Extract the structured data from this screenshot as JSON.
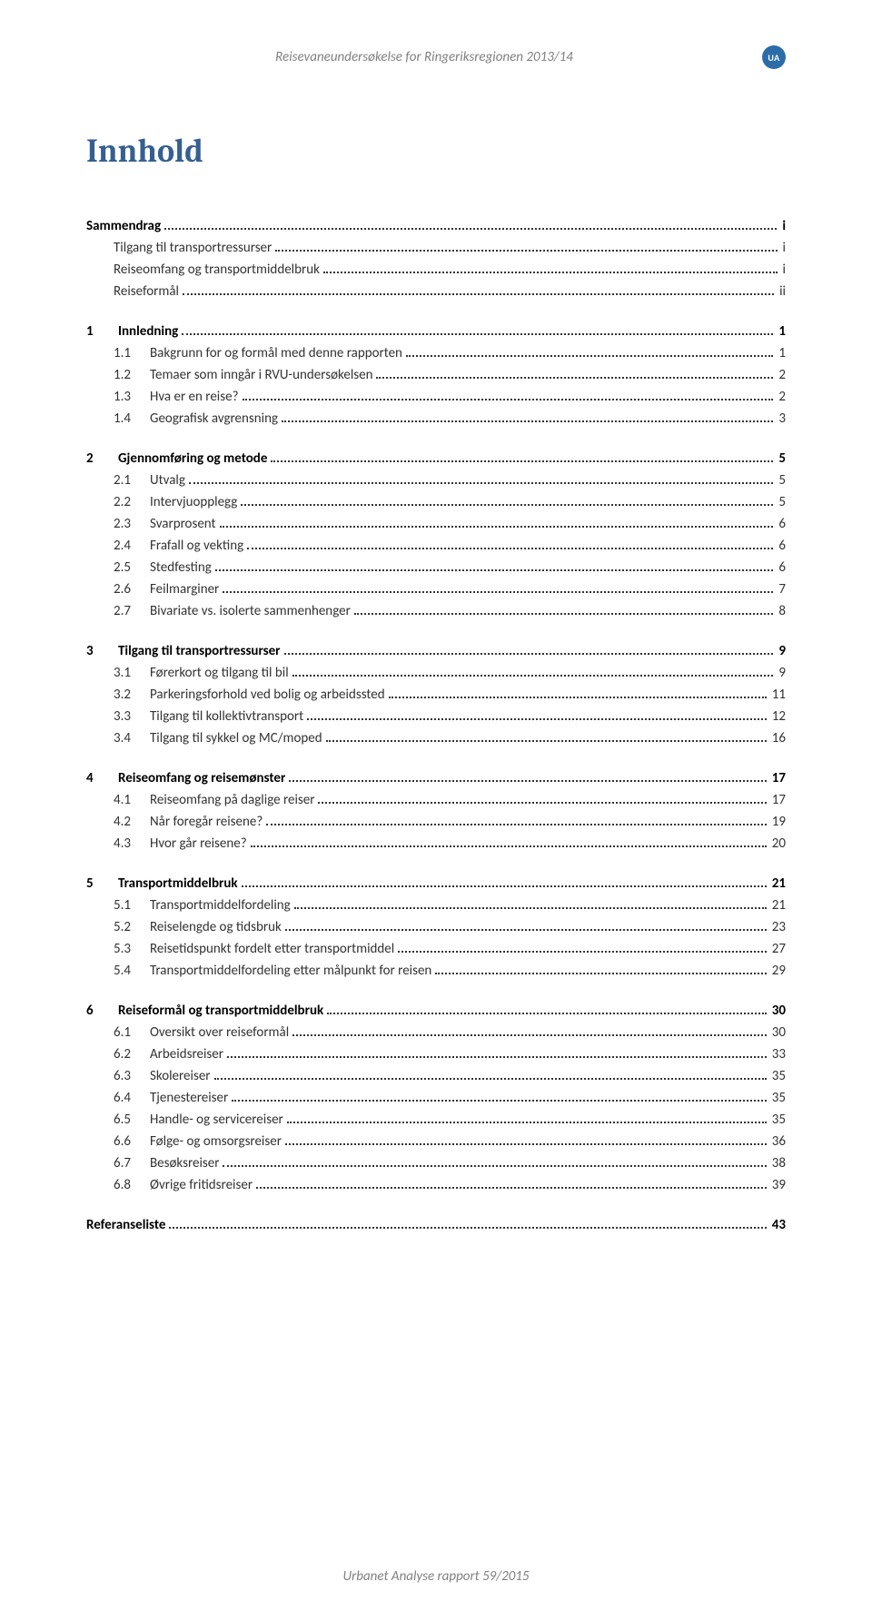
{
  "header": {
    "doc_title": "Reisevaneundersøkelse for Ringeriksregionen 2013/14",
    "badge": "UA"
  },
  "page_heading": "Innhold",
  "footer": "Urbanet Analyse rapport 59/2015",
  "colors": {
    "heading": "#365f91",
    "muted": "#808080",
    "text": "#333333",
    "badge_bg": "#2c6ca8",
    "badge_fg": "#ffffff",
    "background": "#ffffff"
  },
  "toc": [
    {
      "level": 0,
      "section": true,
      "label": "Sammendrag",
      "page": "i"
    },
    {
      "level": 1,
      "label": "Tilgang til transportressurser",
      "page": "i"
    },
    {
      "level": 1,
      "label": "Reiseomfang og transportmiddelbruk",
      "page": "i"
    },
    {
      "level": 1,
      "label": "Reiseformål",
      "page": "ii"
    },
    {
      "level": 0,
      "section": true,
      "num": "1",
      "label": "Innledning",
      "page": "1"
    },
    {
      "level": 1,
      "num": "1.1",
      "label": "Bakgrunn for og formål med denne rapporten",
      "page": "1"
    },
    {
      "level": 1,
      "num": "1.2",
      "label": "Temaer som inngår i RVU-undersøkelsen",
      "page": "2"
    },
    {
      "level": 1,
      "num": "1.3",
      "label": "Hva er en reise?",
      "page": "2"
    },
    {
      "level": 1,
      "num": "1.4",
      "label": "Geografisk avgrensning",
      "page": "3"
    },
    {
      "level": 0,
      "section": true,
      "num": "2",
      "label": "Gjennomføring og metode",
      "page": "5"
    },
    {
      "level": 1,
      "num": "2.1",
      "label": "Utvalg",
      "page": "5"
    },
    {
      "level": 1,
      "num": "2.2",
      "label": "Intervjuopplegg",
      "page": "5"
    },
    {
      "level": 1,
      "num": "2.3",
      "label": "Svarprosent",
      "page": "6"
    },
    {
      "level": 1,
      "num": "2.4",
      "label": "Frafall og vekting",
      "page": "6"
    },
    {
      "level": 1,
      "num": "2.5",
      "label": "Stedfesting",
      "page": "6"
    },
    {
      "level": 1,
      "num": "2.6",
      "label": "Feilmarginer",
      "page": "7"
    },
    {
      "level": 1,
      "num": "2.7",
      "label": "Bivariate vs. isolerte sammenhenger",
      "page": "8"
    },
    {
      "level": 0,
      "section": true,
      "num": "3",
      "label": "Tilgang til transportressurser",
      "page": "9"
    },
    {
      "level": 1,
      "num": "3.1",
      "label": "Førerkort og tilgang til bil",
      "page": "9"
    },
    {
      "level": 1,
      "num": "3.2",
      "label": "Parkeringsforhold ved bolig og arbeidssted",
      "page": "11"
    },
    {
      "level": 1,
      "num": "3.3",
      "label": "Tilgang til kollektivtransport",
      "page": "12"
    },
    {
      "level": 1,
      "num": "3.4",
      "label": "Tilgang til sykkel og MC/moped",
      "page": "16"
    },
    {
      "level": 0,
      "section": true,
      "num": "4",
      "label": "Reiseomfang og reisemønster",
      "page": "17"
    },
    {
      "level": 1,
      "num": "4.1",
      "label": "Reiseomfang på daglige reiser",
      "page": "17"
    },
    {
      "level": 1,
      "num": "4.2",
      "label": "Når foregår reisene?",
      "page": "19"
    },
    {
      "level": 1,
      "num": "4.3",
      "label": "Hvor går reisene?",
      "page": "20"
    },
    {
      "level": 0,
      "section": true,
      "num": "5",
      "label": "Transportmiddelbruk",
      "page": "21"
    },
    {
      "level": 1,
      "num": "5.1",
      "label": "Transportmiddelfordeling",
      "page": "21"
    },
    {
      "level": 1,
      "num": "5.2",
      "label": "Reiselengde og tidsbruk",
      "page": "23"
    },
    {
      "level": 1,
      "num": "5.3",
      "label": "Reisetidspunkt fordelt etter transportmiddel",
      "page": "27"
    },
    {
      "level": 1,
      "num": "5.4",
      "label": "Transportmiddelfordeling etter målpunkt for reisen",
      "page": "29"
    },
    {
      "level": 0,
      "section": true,
      "num": "6",
      "label": "Reiseformål og transportmiddelbruk",
      "page": "30"
    },
    {
      "level": 1,
      "num": "6.1",
      "label": "Oversikt over reiseformål",
      "page": "30"
    },
    {
      "level": 1,
      "num": "6.2",
      "label": "Arbeidsreiser",
      "page": "33"
    },
    {
      "level": 1,
      "num": "6.3",
      "label": "Skolereiser",
      "page": "35"
    },
    {
      "level": 1,
      "num": "6.4",
      "label": "Tjenestereiser",
      "page": "35"
    },
    {
      "level": 1,
      "num": "6.5",
      "label": "Handle- og servicereiser",
      "page": "35"
    },
    {
      "level": 1,
      "num": "6.6",
      "label": "Følge- og omsorgsreiser",
      "page": "36"
    },
    {
      "level": 1,
      "num": "6.7",
      "label": "Besøksreiser",
      "page": "38"
    },
    {
      "level": 1,
      "num": "6.8",
      "label": "Øvrige fritidsreiser",
      "page": "39"
    },
    {
      "level": 0,
      "section": true,
      "label": "Referanseliste",
      "page": "43"
    }
  ]
}
